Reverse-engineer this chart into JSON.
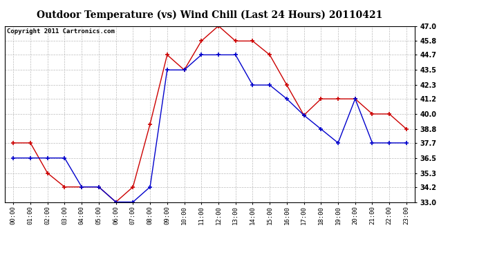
{
  "title": "Outdoor Temperature (vs) Wind Chill (Last 24 Hours) 20110421",
  "copyright_text": "Copyright 2011 Cartronics.com",
  "x_labels": [
    "00:00",
    "01:00",
    "02:00",
    "03:00",
    "04:00",
    "05:00",
    "06:00",
    "07:00",
    "08:00",
    "09:00",
    "10:00",
    "11:00",
    "12:00",
    "13:00",
    "14:00",
    "15:00",
    "16:00",
    "17:00",
    "18:00",
    "19:00",
    "20:00",
    "21:00",
    "22:00",
    "23:00"
  ],
  "temp_red": [
    37.7,
    37.7,
    35.3,
    34.2,
    34.2,
    34.2,
    33.0,
    34.2,
    39.2,
    44.7,
    43.5,
    45.8,
    47.0,
    45.8,
    45.8,
    44.7,
    42.3,
    39.9,
    41.2,
    41.2,
    41.2,
    40.0,
    40.0,
    38.8
  ],
  "temp_blue": [
    36.5,
    36.5,
    36.5,
    36.5,
    34.2,
    34.2,
    33.0,
    33.0,
    34.2,
    43.5,
    43.5,
    44.7,
    44.7,
    44.7,
    42.3,
    42.3,
    41.2,
    39.9,
    38.8,
    37.7,
    41.2,
    37.7,
    37.7,
    37.7
  ],
  "red_color": "#cc0000",
  "blue_color": "#0000cc",
  "ylim_min": 33.0,
  "ylim_max": 47.0,
  "yticks": [
    33.0,
    34.2,
    35.3,
    36.5,
    37.7,
    38.8,
    40.0,
    41.2,
    42.3,
    43.5,
    44.7,
    45.8,
    47.0
  ],
  "background_color": "#ffffff",
  "plot_bg_color": "#ffffff",
  "grid_color": "#bbbbbb",
  "title_fontsize": 10,
  "copyright_fontsize": 6.5
}
